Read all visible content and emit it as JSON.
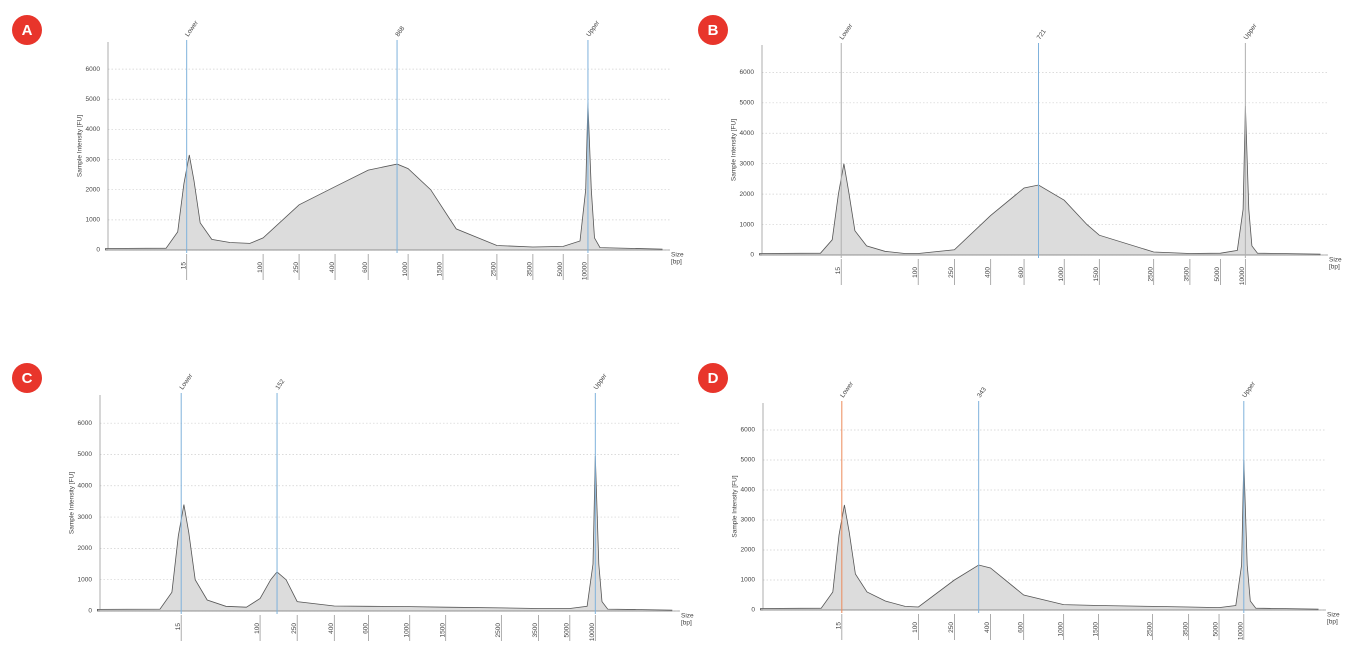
{
  "chart_data": [
    {
      "type": "area",
      "panel": "A",
      "y_label": "Sample Intensity [FU]",
      "x_label": [
        "Size",
        "[bp]"
      ],
      "x": [
        2,
        9,
        12,
        14,
        16,
        18,
        21,
        28,
        44,
        72,
        100,
        250,
        400,
        600,
        868,
        1000,
        1300,
        1700,
        2500,
        3500,
        5000,
        8000,
        9400,
        10000,
        11000,
        12000,
        14000,
        80000
      ],
      "values": [
        50,
        60,
        600,
        2200,
        3150,
        2300,
        900,
        350,
        250,
        220,
        400,
        1500,
        2100,
        2650,
        2850,
        2700,
        2000,
        700,
        150,
        100,
        120,
        300,
        2000,
        4900,
        2000,
        400,
        80,
        30
      ],
      "color": "#dcdcdc",
      "line_color": "#555555",
      "ylim": [
        0,
        6900
      ],
      "yticks": [
        0,
        1000,
        2000,
        3000,
        4000,
        5000,
        6000
      ],
      "xticks": [
        15,
        100,
        250,
        400,
        600,
        1000,
        1500,
        2500,
        3500,
        5000,
        10000
      ],
      "grid": true,
      "markers": [
        {
          "name": "Lower",
          "x": 15,
          "color": "#7fb2dc"
        },
        {
          "x": 868,
          "color": "#7fb2dc"
        },
        {
          "name": "Upper",
          "x": 10000,
          "color": "#7fb2dc"
        }
      ]
    },
    {
      "type": "area",
      "panel": "B",
      "y_label": "Sample Intensity [FU]",
      "x_label": [
        "Size",
        "[bp]"
      ],
      "x": [
        2,
        9,
        12,
        14,
        16,
        18,
        21,
        28,
        44,
        72,
        100,
        250,
        400,
        600,
        721,
        1000,
        1300,
        1500,
        2500,
        3500,
        5000,
        8000,
        9400,
        10000,
        11000,
        12000,
        14000,
        80000
      ],
      "values": [
        50,
        60,
        500,
        2000,
        3000,
        2100,
        800,
        300,
        120,
        50,
        50,
        170,
        1300,
        2200,
        2300,
        1800,
        1000,
        650,
        100,
        50,
        60,
        150,
        1500,
        4900,
        1500,
        300,
        60,
        30
      ],
      "color": "#dcdcdc",
      "line_color": "#555555",
      "ylim": [
        0,
        6900
      ],
      "yticks": [
        0,
        1000,
        2000,
        3000,
        4000,
        5000,
        6000
      ],
      "xticks": [
        15,
        100,
        250,
        400,
        600,
        1000,
        1500,
        2500,
        3500,
        5000,
        10000
      ],
      "grid": true,
      "markers": [
        {
          "name": "Lower",
          "x": 15,
          "color": "#b0b0b0"
        },
        {
          "x": 721,
          "color": "#7fb2dc"
        },
        {
          "name": "Upper",
          "x": 10000,
          "color": "#b0b0b0"
        }
      ]
    },
    {
      "type": "area",
      "panel": "C",
      "y_label": "Sample Intensity [FU]",
      "x_label": [
        "Size",
        "[bp]"
      ],
      "x": [
        2,
        9,
        12,
        14,
        16,
        18,
        21,
        28,
        44,
        72,
        100,
        130,
        152,
        190,
        250,
        400,
        600,
        1000,
        1500,
        2500,
        3500,
        5000,
        8000,
        9400,
        10000,
        11000,
        12000,
        14000,
        80000
      ],
      "values": [
        50,
        60,
        600,
        2400,
        3400,
        2500,
        1000,
        350,
        150,
        120,
        400,
        1000,
        1250,
        1000,
        300,
        160,
        150,
        140,
        120,
        100,
        80,
        80,
        150,
        1500,
        4950,
        1500,
        300,
        60,
        30
      ],
      "color": "#dcdcdc",
      "line_color": "#555555",
      "ylim": [
        0,
        6900
      ],
      "yticks": [
        0,
        1000,
        2000,
        3000,
        4000,
        5000,
        6000
      ],
      "xticks": [
        15,
        100,
        250,
        400,
        600,
        1000,
        1500,
        2500,
        3500,
        5000,
        10000
      ],
      "grid": true,
      "markers": [
        {
          "name": "Lower",
          "x": 15,
          "color": "#7fb2dc"
        },
        {
          "x": 152,
          "color": "#7fb2dc"
        },
        {
          "name": "Upper",
          "x": 10000,
          "color": "#7fb2dc"
        }
      ]
    },
    {
      "type": "area",
      "panel": "D",
      "y_label": "Sample Intensity [FU]",
      "x_label": [
        "Size",
        "[bp]"
      ],
      "x": [
        2,
        9,
        12,
        14,
        16,
        18,
        21,
        28,
        44,
        72,
        100,
        250,
        343,
        400,
        600,
        1000,
        1500,
        2500,
        3500,
        5000,
        8000,
        9400,
        10000,
        11000,
        12000,
        14000,
        80000
      ],
      "values": [
        50,
        60,
        600,
        2500,
        3500,
        2600,
        1200,
        600,
        300,
        120,
        100,
        1000,
        1500,
        1400,
        500,
        180,
        150,
        120,
        100,
        80,
        150,
        1500,
        5000,
        1500,
        300,
        60,
        30
      ],
      "color": "#dcdcdc",
      "line_color": "#555555",
      "ylim": [
        0,
        6900
      ],
      "yticks": [
        0,
        1000,
        2000,
        3000,
        4000,
        5000,
        6000
      ],
      "xticks": [
        15,
        100,
        250,
        400,
        600,
        1000,
        1500,
        2500,
        3500,
        5000,
        10000
      ],
      "grid": true,
      "markers": [
        {
          "name": "Lower",
          "x": 15,
          "color": "#ec8a5a"
        },
        {
          "x": 343,
          "color": "#7fb2dc"
        },
        {
          "name": "Upper",
          "x": 10000,
          "color": "#7fb2dc"
        }
      ]
    }
  ]
}
